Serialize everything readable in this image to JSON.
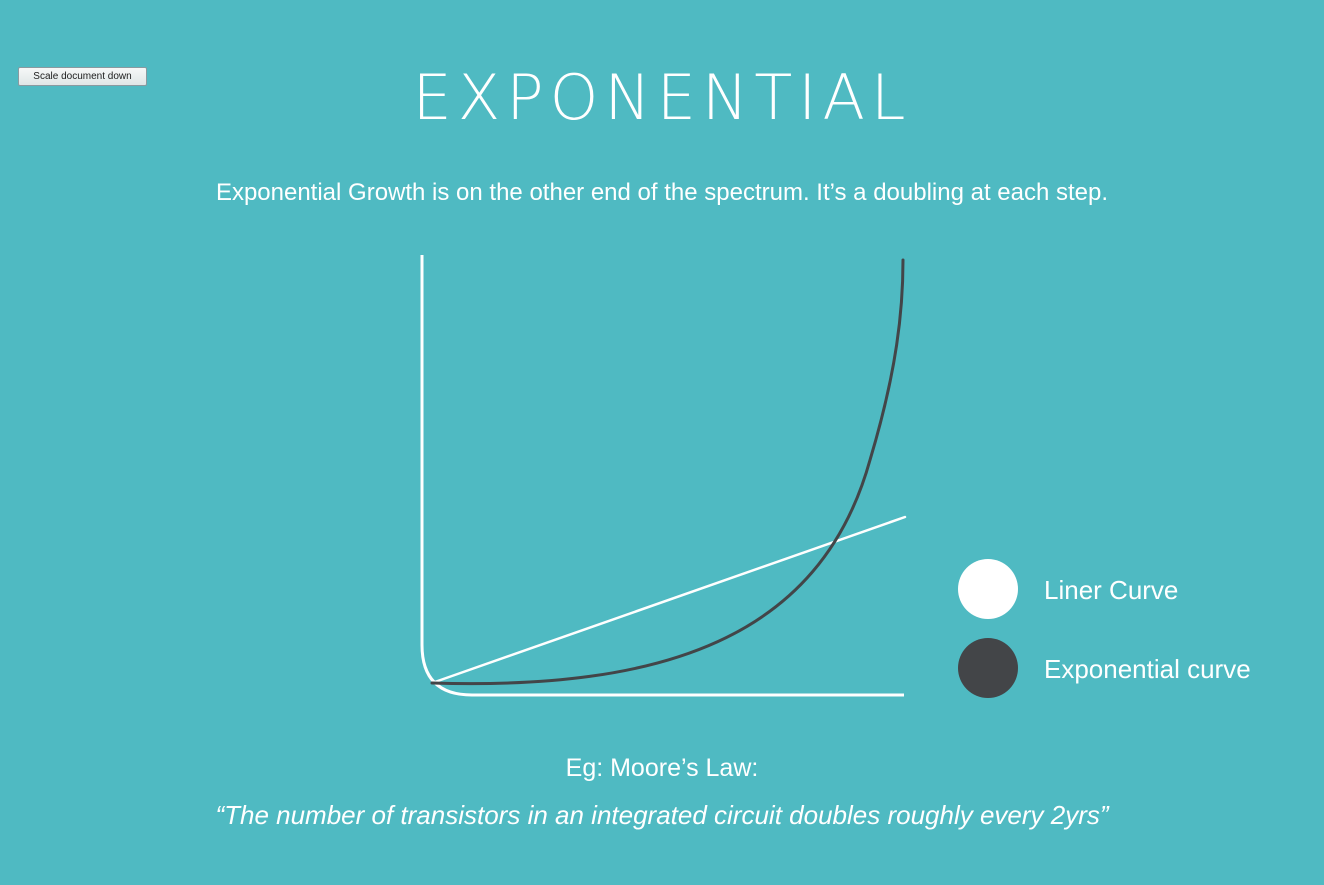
{
  "toolbar": {
    "scale_button_label": "Scale document down"
  },
  "slide": {
    "title": "EXPONENTIAL",
    "subtitle": "Exponential Growth is on the other end of the spectrum. It’s a doubling at each step.",
    "example_label": "Eg: Moore’s Law:",
    "quote": "“The number of transistors in an integrated circuit doubles roughly every 2yrs”"
  },
  "colors": {
    "background": "#4fbac2",
    "linear": "#ffffff",
    "exponential": "#434548"
  },
  "legend": [
    {
      "label": "Liner Curve",
      "color": "#ffffff"
    },
    {
      "label": "Exponential curve",
      "color": "#434548"
    }
  ]
}
